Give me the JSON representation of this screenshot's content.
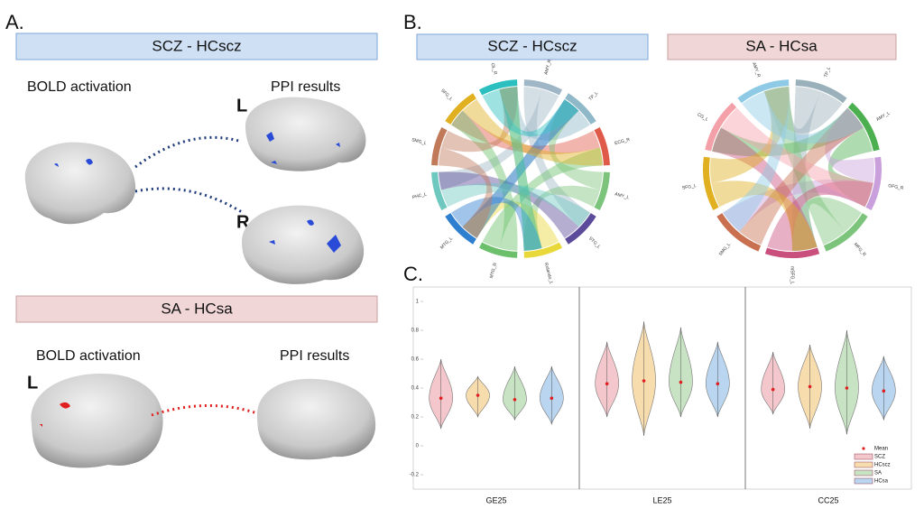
{
  "panel_a": {
    "label": "A.",
    "top": {
      "title": "SCZ - HCscz",
      "left_label": "BOLD activation",
      "right_label": "PPI results",
      "hemispheres": [
        "L",
        "R"
      ]
    },
    "bottom": {
      "title": "SA - HCsa",
      "left_label": "BOLD activation",
      "right_label": "PPI results",
      "hemisphere": "L"
    }
  },
  "panel_b": {
    "label": "B.",
    "diagrams": [
      {
        "title": "SCZ - HCscz",
        "nodes": [
          {
            "label": "AMY_R",
            "color": "#9fb6c6"
          },
          {
            "label": "TP_L",
            "color": "#8fb8c8"
          },
          {
            "label": "ECG_R",
            "color": "#e05a4a"
          },
          {
            "label": "AMY_L",
            "color": "#7cc47c"
          },
          {
            "label": "STG_L",
            "color": "#5b4b9a"
          },
          {
            "label": "Rolando_L",
            "color": "#e8d83a"
          },
          {
            "label": "MTG_R",
            "color": "#6cc06c"
          },
          {
            "label": "MTG_L",
            "color": "#2f7fd0"
          },
          {
            "label": "PHC_L",
            "color": "#6fc8c0"
          },
          {
            "label": "SMG_L",
            "color": "#c07a5a"
          },
          {
            "label": "SFG_L",
            "color": "#e0b020"
          },
          {
            "label": "OL_R",
            "color": "#2bbfbf"
          }
        ]
      },
      {
        "title": "SA - HCsa",
        "nodes": [
          {
            "label": "TP_L",
            "color": "#9ab0bb"
          },
          {
            "label": "AMY_L",
            "color": "#4caf50"
          },
          {
            "label": "OFG_R",
            "color": "#c9a0dc"
          },
          {
            "label": "MFG_R",
            "color": "#7cc47c"
          },
          {
            "label": "mSFG_L",
            "color": "#c94f7c"
          },
          {
            "label": "SMG_L",
            "color": "#c87050"
          },
          {
            "label": "SFG_L",
            "color": "#e0b020"
          },
          {
            "label": "CG_L",
            "color": "#f4a0a8"
          },
          {
            "label": "AMY_R",
            "color": "#8ecae6"
          }
        ]
      }
    ]
  },
  "panel_c_label": "C.",
  "chart_data": {
    "type": "violin",
    "categories": [
      "GE25",
      "LE25",
      "CC25"
    ],
    "series": [
      {
        "name": "SCZ",
        "color": "#f4c7cc",
        "values": [
          0.33,
          0.43,
          0.39
        ],
        "lows": [
          0.12,
          0.2,
          0.22
        ],
        "highs": [
          0.6,
          0.72,
          0.65
        ]
      },
      {
        "name": "HCscz",
        "color": "#f7dcae",
        "values": [
          0.35,
          0.45,
          0.41
        ],
        "lows": [
          0.2,
          0.07,
          0.12
        ],
        "highs": [
          0.48,
          0.86,
          0.7
        ]
      },
      {
        "name": "SA",
        "color": "#c8e3c4",
        "values": [
          0.32,
          0.44,
          0.4
        ],
        "lows": [
          0.18,
          0.2,
          0.08
        ],
        "highs": [
          0.55,
          0.82,
          0.8
        ]
      },
      {
        "name": "HCsa",
        "color": "#b9d5ef",
        "values": [
          0.33,
          0.43,
          0.38
        ],
        "lows": [
          0.15,
          0.2,
          0.18
        ],
        "highs": [
          0.55,
          0.72,
          0.62
        ]
      }
    ],
    "mean_label": "Mean",
    "ylim": [
      -0.3,
      1.1
    ],
    "yticks": [
      -0.2,
      0,
      0.2,
      0.4,
      0.6,
      0.8,
      1
    ],
    "legend": "lower right"
  }
}
